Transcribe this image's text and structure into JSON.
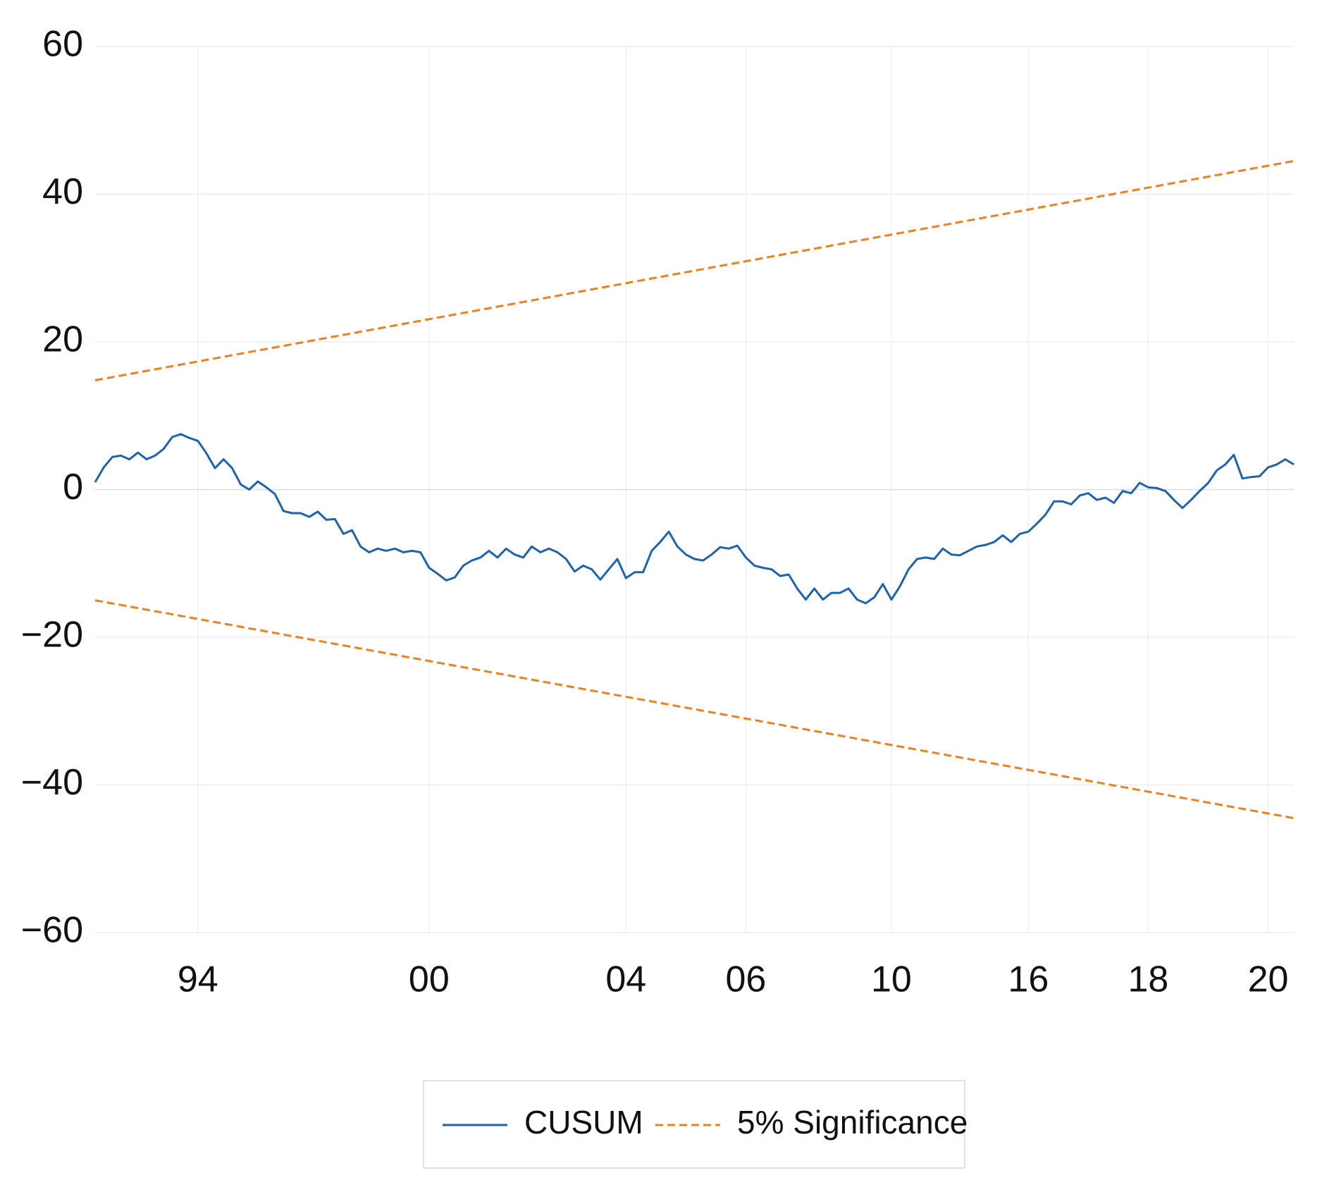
{
  "chart_data": {
    "type": "line",
    "xlim": [
      0,
      140
    ],
    "xticks": [
      {
        "value": 12,
        "label": "94"
      },
      {
        "value": 39,
        "label": "00"
      },
      {
        "value": 62,
        "label": "04"
      },
      {
        "value": 76,
        "label": "06"
      },
      {
        "value": 93,
        "label": "10"
      },
      {
        "value": 109,
        "label": "16"
      },
      {
        "value": 123,
        "label": "18"
      },
      {
        "value": 137,
        "label": "20"
      }
    ],
    "ylim": [
      -60,
      60
    ],
    "yticks": [
      {
        "value": -60,
        "label": "−60"
      },
      {
        "value": -40,
        "label": "−40"
      },
      {
        "value": -20,
        "label": "−20"
      },
      0,
      20,
      40,
      60
    ],
    "grid": true,
    "legend": "bottom",
    "series": [
      {
        "name": "CUSUM",
        "color": "#1f63ad",
        "values": [
          1,
          3,
          4.4,
          4.6,
          4.1,
          5,
          4.1,
          4.6,
          5.5,
          7.1,
          7.5,
          7,
          6.6,
          4.9,
          2.9,
          4.1,
          2.9,
          0.7,
          0,
          1.1,
          0.3,
          -0.6,
          -2.9,
          -3.2,
          -3.2,
          -3.7,
          -3,
          -4.1,
          -4,
          -6,
          -5.5,
          -7.7,
          -8.5,
          -8,
          -8.3,
          -8,
          -8.5,
          -8.3,
          -8.5,
          -10.6,
          -11.4,
          -12.3,
          -11.9,
          -10.3,
          -9.6,
          -9.2,
          -8.3,
          -9.2,
          -8,
          -8.8,
          -9.2,
          -7.7,
          -8.5,
          -8,
          -8.5,
          -9.4,
          -11.1,
          -10.3,
          -10.8,
          -12.2,
          -10.8,
          -9.4,
          -12,
          -11.2,
          -11.2,
          -8.3,
          -7.1,
          -5.7,
          -7.7,
          -8.8,
          -9.4,
          -9.6,
          -8.8,
          -7.8,
          -8,
          -7.6,
          -9.2,
          -10.3,
          -10.6,
          -10.8,
          -11.7,
          -11.5,
          -13.4,
          -14.9,
          -13.4,
          -14.9,
          -14,
          -14,
          -13.4,
          -14.9,
          -15.4,
          -14.6,
          -12.8,
          -14.9,
          -13.1,
          -10.8,
          -9.4,
          -9.2,
          -9.4,
          -8,
          -8.8,
          -8.9,
          -8.3,
          -7.7,
          -7.5,
          -7.1,
          -6.2,
          -7.1,
          -6,
          -5.7,
          -4.6,
          -3.4,
          -1.6,
          -1.6,
          -2,
          -0.8,
          -0.5,
          -1.4,
          -1.1,
          -1.8,
          -0.2,
          -0.5,
          0.9,
          0.3,
          0.2,
          -0.2,
          -1.4,
          -2.5,
          -1.4,
          -0.2,
          0.9,
          2.6,
          3.4,
          4.7,
          1.5,
          1.7,
          1.8,
          3,
          3.4,
          4.1,
          3.4
        ]
      },
      {
        "name": "5% Significance",
        "color": "#f07f1e",
        "dashed": true,
        "x": [
          0,
          140
        ],
        "values": [
          14.8,
          44.5
        ]
      },
      {
        "color": "#f07f1e",
        "dashed": true,
        "x": [
          0,
          140
        ],
        "values": [
          -15,
          -44.5
        ]
      }
    ]
  }
}
